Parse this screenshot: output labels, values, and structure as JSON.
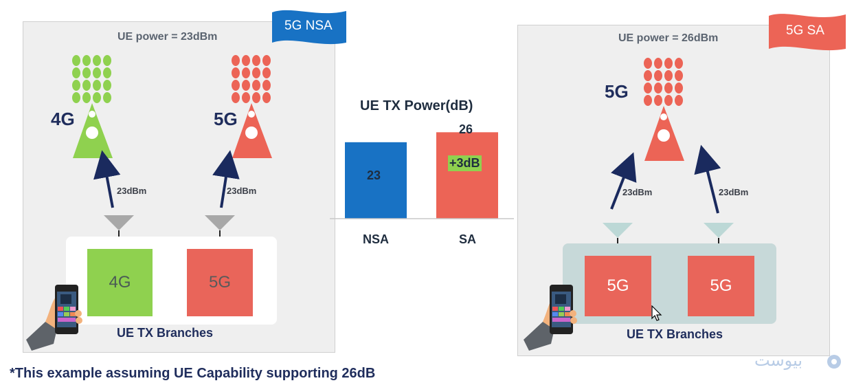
{
  "nsa_panel": {
    "ue_power": "UE power = 23dBm",
    "flag_label": "5G NSA",
    "tower_4g_label": "4G",
    "tower_5g_label": "5G",
    "arrow_4g_label": "23dBm",
    "arrow_5g_label": "23dBm",
    "branch_4g_label": "4G",
    "branch_5g_label": "5G",
    "branches_title": "UE TX Branches"
  },
  "sa_panel": {
    "ue_power": "UE power = 26dBm",
    "flag_label": "5G SA",
    "tower_5g_label": "5G",
    "arrow_left_label": "23dBm",
    "arrow_right_label": "23dBm",
    "branch_left_label": "5G",
    "branch_right_label": "5G",
    "branches_title": "UE TX Branches"
  },
  "chart_data": {
    "type": "bar",
    "title": "UE TX Power(dB)",
    "categories": [
      "NSA",
      "SA"
    ],
    "values": [
      23,
      26
    ],
    "value_labels": [
      "23",
      "26"
    ],
    "ylim": [
      0,
      30
    ],
    "annotation": "+3dB",
    "bar_colors": [
      "#1872c4",
      "#ec6456"
    ],
    "annotation_color": "#8fd14f"
  },
  "footnote": "*This example assuming UE Capability supporting 26dB",
  "watermark": "بیوست",
  "colors": {
    "green": "#8fd14f",
    "red": "#ec6456",
    "blue": "#1872c4",
    "navy": "#1f2d5c"
  }
}
